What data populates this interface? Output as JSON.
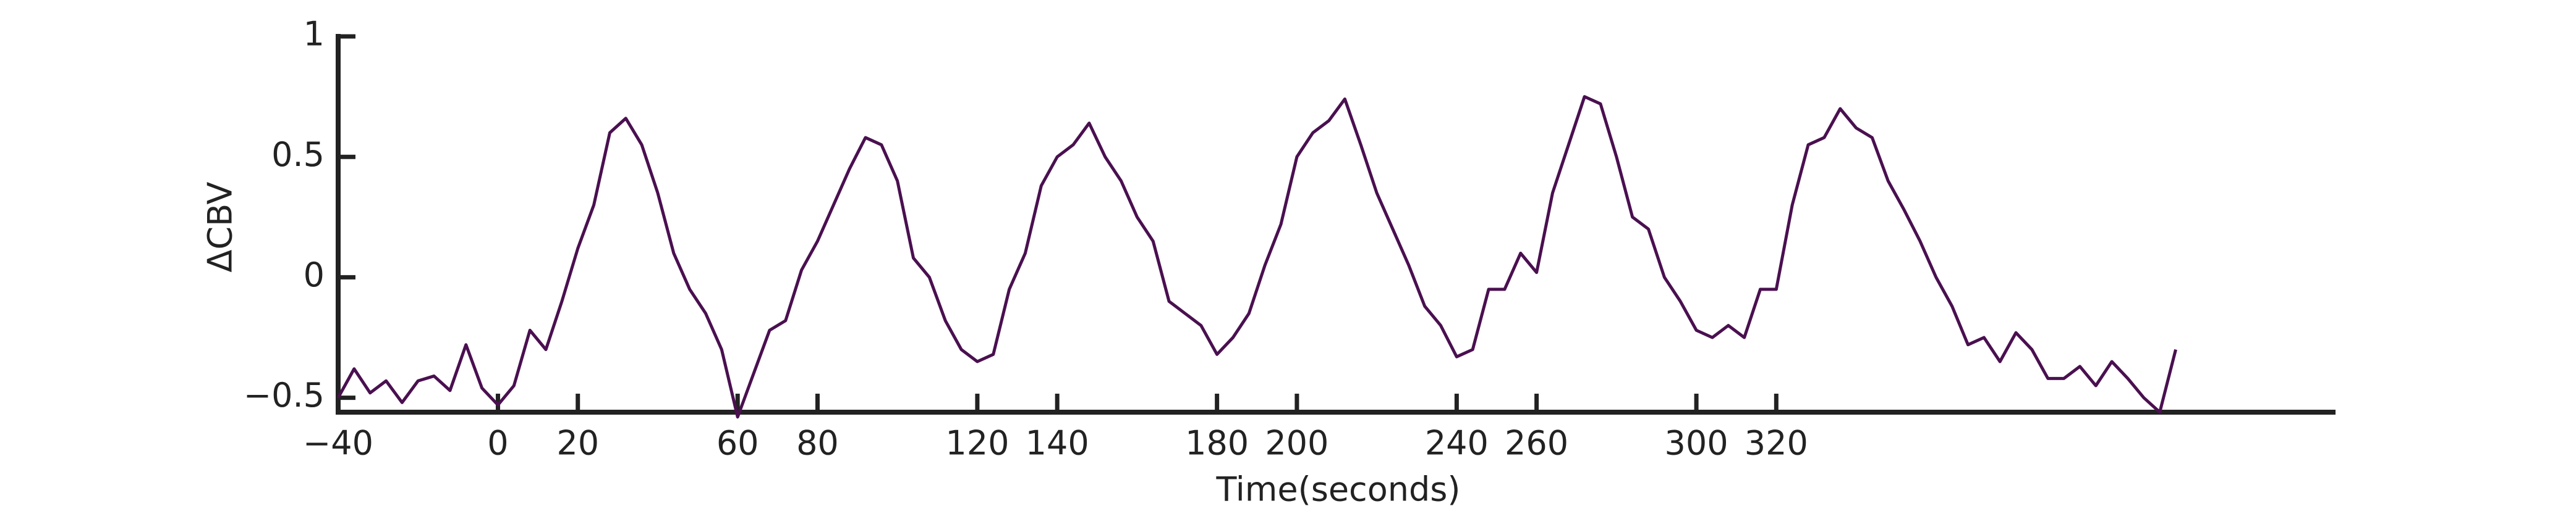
{
  "chart_data": {
    "type": "line",
    "xlabel": "Time(seconds)",
    "ylabel": "ΔCBV",
    "xlim": [
      -40,
      460
    ],
    "ylim": [
      -0.56,
      1
    ],
    "xticks": [
      {
        "value": -40,
        "label": "−40"
      },
      0,
      20,
      60,
      80,
      120,
      140,
      180,
      200,
      240,
      260,
      300,
      320
    ],
    "yticks": [
      {
        "value": -0.5,
        "label": "−0.5"
      },
      0,
      0.5,
      1
    ],
    "x": [
      -40,
      -36,
      -32,
      -28,
      -24,
      -20,
      -16,
      -12,
      -8,
      -4,
      0,
      4,
      8,
      12,
      16,
      20,
      24,
      28,
      32,
      36,
      40,
      44,
      48,
      52,
      56,
      60,
      64,
      68,
      72,
      76,
      80,
      84,
      88,
      92,
      96,
      100,
      104,
      108,
      112,
      116,
      120,
      124,
      128,
      132,
      136,
      140,
      144,
      148,
      152,
      156,
      160,
      164,
      168,
      172,
      176,
      180,
      184,
      188,
      192,
      196,
      200,
      204,
      208,
      212,
      216,
      220,
      224,
      228,
      232,
      236,
      240,
      244,
      248,
      252,
      256,
      260,
      264,
      268,
      272,
      276,
      280,
      284,
      288,
      292,
      296,
      300,
      304,
      308,
      312,
      316,
      320,
      324,
      328,
      332,
      336,
      340,
      344,
      348,
      352,
      356,
      360,
      364,
      368,
      372,
      376,
      380,
      384,
      388,
      392,
      396,
      400,
      404,
      408,
      412,
      416,
      420
    ],
    "series": [
      {
        "color": "#4a1050",
        "values": [
          -0.5,
          -0.38,
          -0.48,
          -0.43,
          -0.52,
          -0.43,
          -0.41,
          -0.47,
          -0.28,
          -0.46,
          -0.53,
          -0.45,
          -0.22,
          -0.3,
          -0.1,
          0.12,
          0.3,
          0.6,
          0.66,
          0.55,
          0.35,
          0.1,
          -0.05,
          -0.15,
          -0.3,
          -0.58,
          -0.4,
          -0.22,
          -0.18,
          0.03,
          0.15,
          0.3,
          0.45,
          0.58,
          0.55,
          0.4,
          0.08,
          0.0,
          -0.18,
          -0.3,
          -0.35,
          -0.32,
          -0.05,
          0.1,
          0.38,
          0.5,
          0.55,
          0.64,
          0.5,
          0.4,
          0.25,
          0.15,
          -0.1,
          -0.15,
          -0.2,
          -0.32,
          -0.25,
          -0.15,
          0.05,
          0.22,
          0.5,
          0.6,
          0.65,
          0.74,
          0.55,
          0.35,
          0.2,
          0.05,
          -0.12,
          -0.2,
          -0.33,
          -0.3,
          -0.05,
          -0.05,
          0.1,
          0.02,
          0.35,
          0.55,
          0.75,
          0.72,
          0.5,
          0.25,
          0.2,
          0.0,
          -0.1,
          -0.22,
          -0.25,
          -0.2,
          -0.25,
          -0.05,
          -0.05,
          0.3,
          0.55,
          0.58,
          0.7,
          0.62,
          0.58,
          0.4,
          0.28,
          0.15,
          0.0,
          -0.12,
          -0.28,
          -0.25,
          -0.35,
          -0.23,
          -0.3,
          -0.42,
          -0.42,
          -0.37,
          -0.45,
          -0.35,
          -0.42,
          -0.5,
          -0.56,
          -0.3
        ]
      }
    ]
  }
}
